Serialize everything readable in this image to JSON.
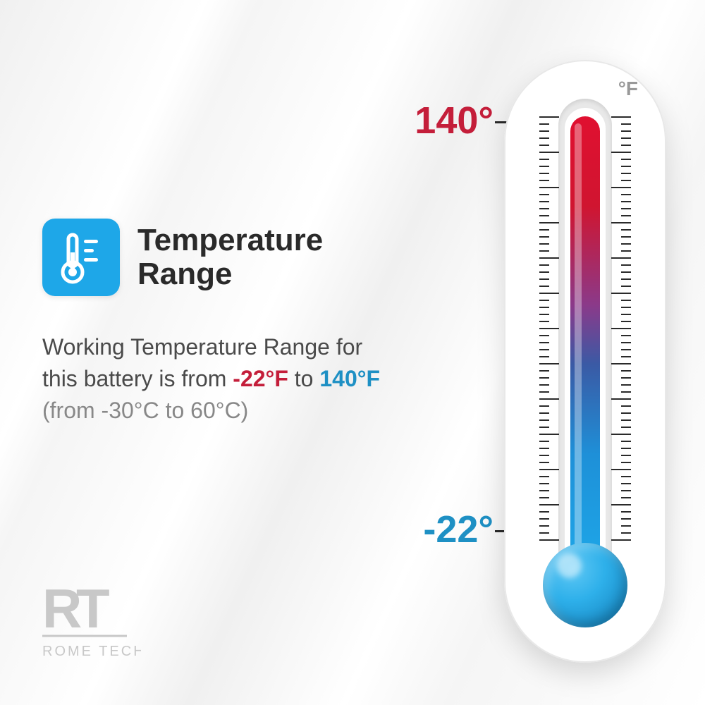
{
  "title": "Temperature\nRange",
  "description": {
    "prefix": "Working Temperature Range for this battery is from ",
    "low_f": "-22°F",
    "mid": " to ",
    "high_f": "140°F",
    "celsius": "(from -30°C to 60°C)"
  },
  "thermometer": {
    "unit": "°F",
    "high_label": "140°",
    "low_label": "-22°",
    "high_color": "#c41e3a",
    "low_color": "#1e90c4",
    "gradient_stops": [
      "#e01030",
      "#d01530",
      "#8a3a8a",
      "#3a5aa5",
      "#1e90d8",
      "#1ea7e8"
    ],
    "tick_count": 60,
    "major_every": 5
  },
  "icon": {
    "name": "thermometer-icon",
    "bg_color": "#1ea7e8"
  },
  "logo": {
    "mark": "RT",
    "text": "ROME TECH"
  },
  "colors": {
    "title": "#2a2a2a",
    "body": "#4a4a4a",
    "muted": "#888888",
    "logo": "#c0c0c0"
  }
}
